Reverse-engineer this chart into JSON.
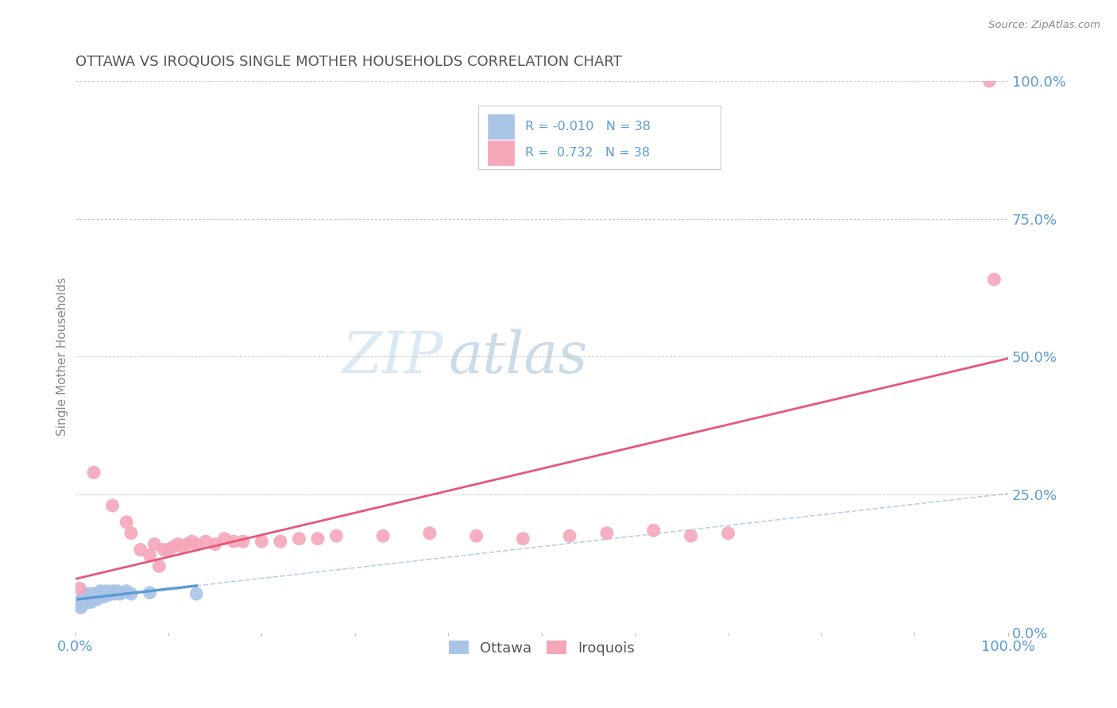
{
  "title": "OTTAWA VS IROQUOIS SINGLE MOTHER HOUSEHOLDS CORRELATION CHART",
  "source": "Source: ZipAtlas.com",
  "ylabel": "Single Mother Households",
  "xlim": [
    0,
    1.0
  ],
  "ylim": [
    0,
    1.0
  ],
  "x_ticks": [
    0.0,
    0.1,
    0.2,
    0.3,
    0.4,
    0.5,
    0.6,
    0.7,
    0.8,
    0.9,
    1.0
  ],
  "y_tick_labels_right": [
    "0.0%",
    "25.0%",
    "50.0%",
    "75.0%",
    "100.0%"
  ],
  "y_tick_positions_right": [
    0.0,
    0.25,
    0.5,
    0.75,
    1.0
  ],
  "legend_R_ottawa": "-0.010",
  "legend_R_iroquois": "0.732",
  "legend_N": "38",
  "ottawa_color": "#aac4e8",
  "iroquois_color": "#f4a7b9",
  "ottawa_line_color": "#5b9bd5",
  "iroquois_line_color": "#e8567a",
  "grid_color": "#cccccc",
  "title_color": "#555555",
  "axis_label_color": "#5b9bd5",
  "background_color": "#ffffff",
  "ottawa_points_x": [
    0.003,
    0.005,
    0.006,
    0.007,
    0.008,
    0.01,
    0.01,
    0.012,
    0.013,
    0.014,
    0.015,
    0.016,
    0.017,
    0.018,
    0.02,
    0.021,
    0.022,
    0.023,
    0.025,
    0.026,
    0.027,
    0.028,
    0.03,
    0.031,
    0.033,
    0.035,
    0.036,
    0.038,
    0.04,
    0.042,
    0.043,
    0.045,
    0.048,
    0.05,
    0.055,
    0.06,
    0.08,
    0.13
  ],
  "ottawa_points_y": [
    0.05,
    0.055,
    0.045,
    0.06,
    0.05,
    0.06,
    0.065,
    0.055,
    0.07,
    0.055,
    0.06,
    0.065,
    0.055,
    0.07,
    0.065,
    0.06,
    0.07,
    0.06,
    0.065,
    0.07,
    0.075,
    0.065,
    0.07,
    0.065,
    0.075,
    0.068,
    0.072,
    0.07,
    0.075,
    0.07,
    0.072,
    0.075,
    0.07,
    0.072,
    0.075,
    0.07,
    0.072,
    0.07
  ],
  "iroquois_points_x": [
    0.005,
    0.02,
    0.04,
    0.055,
    0.06,
    0.07,
    0.08,
    0.085,
    0.09,
    0.095,
    0.1,
    0.105,
    0.11,
    0.115,
    0.12,
    0.125,
    0.13,
    0.14,
    0.15,
    0.16,
    0.17,
    0.18,
    0.2,
    0.22,
    0.24,
    0.26,
    0.28,
    0.33,
    0.38,
    0.43,
    0.48,
    0.53,
    0.57,
    0.62,
    0.66,
    0.7,
    0.98,
    0.985
  ],
  "iroquois_points_y": [
    0.08,
    0.29,
    0.23,
    0.2,
    0.18,
    0.15,
    0.14,
    0.16,
    0.12,
    0.15,
    0.15,
    0.155,
    0.16,
    0.155,
    0.16,
    0.165,
    0.16,
    0.165,
    0.16,
    0.17,
    0.165,
    0.165,
    0.165,
    0.165,
    0.17,
    0.17,
    0.175,
    0.175,
    0.18,
    0.175,
    0.17,
    0.175,
    0.18,
    0.185,
    0.175,
    0.18,
    1.0,
    0.64
  ]
}
